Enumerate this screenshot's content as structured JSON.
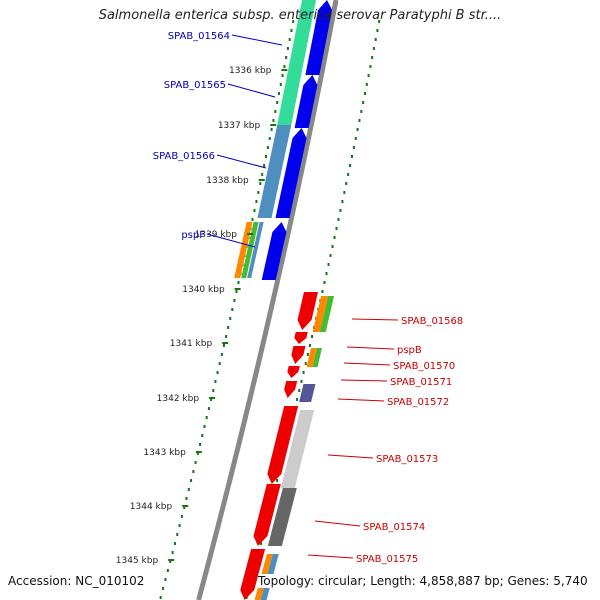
{
  "title": "Salmonella enterica subsp. enterica serovar Paratyphi B str....",
  "footer": {
    "accession": "Accession: NC_010102",
    "summary": "Topology: circular; Length: 4,858,887 bp; Genes: 5,740"
  },
  "ticks": [
    "1336 kbp",
    "1337 kbp",
    "1338 kbp",
    "1339 kbp",
    "1340 kbp",
    "1341 kbp",
    "1342 kbp",
    "1343 kbp",
    "1344 kbp",
    "1345 kbp"
  ],
  "genes": [
    {
      "name": "SPAB_01564",
      "color": "#0000bb"
    },
    {
      "name": "SPAB_01565",
      "color": "#0000bb"
    },
    {
      "name": "SPAB_01566",
      "color": "#0000bb"
    },
    {
      "name": "pspF",
      "color": "#0000bb"
    },
    {
      "name": "SPAB_01568",
      "color": "#cc0000"
    },
    {
      "name": "pspB",
      "color": "#cc0000"
    },
    {
      "name": "SPAB_01570",
      "color": "#cc0000"
    },
    {
      "name": "SPAB_01571",
      "color": "#cc0000"
    },
    {
      "name": "SPAB_01572",
      "color": "#cc0000"
    },
    {
      "name": "SPAB_01573",
      "color": "#cc0000"
    },
    {
      "name": "SPAB_01574",
      "color": "#cc0000"
    },
    {
      "name": "SPAB_01575",
      "color": "#cc0000"
    }
  ],
  "colors": {
    "forward": "#0000ee",
    "reverse": "#ee0000",
    "cog_teal": "#33dd99",
    "cog_steel": "#4f8fbf",
    "orange": "#ff8800",
    "green": "#44bb33",
    "purple": "#555599",
    "light_gray": "#cccccc",
    "mid_gray": "#aaaaaa",
    "dark_gray": "#666666",
    "tick": "#117711",
    "backbone": "#888888"
  }
}
